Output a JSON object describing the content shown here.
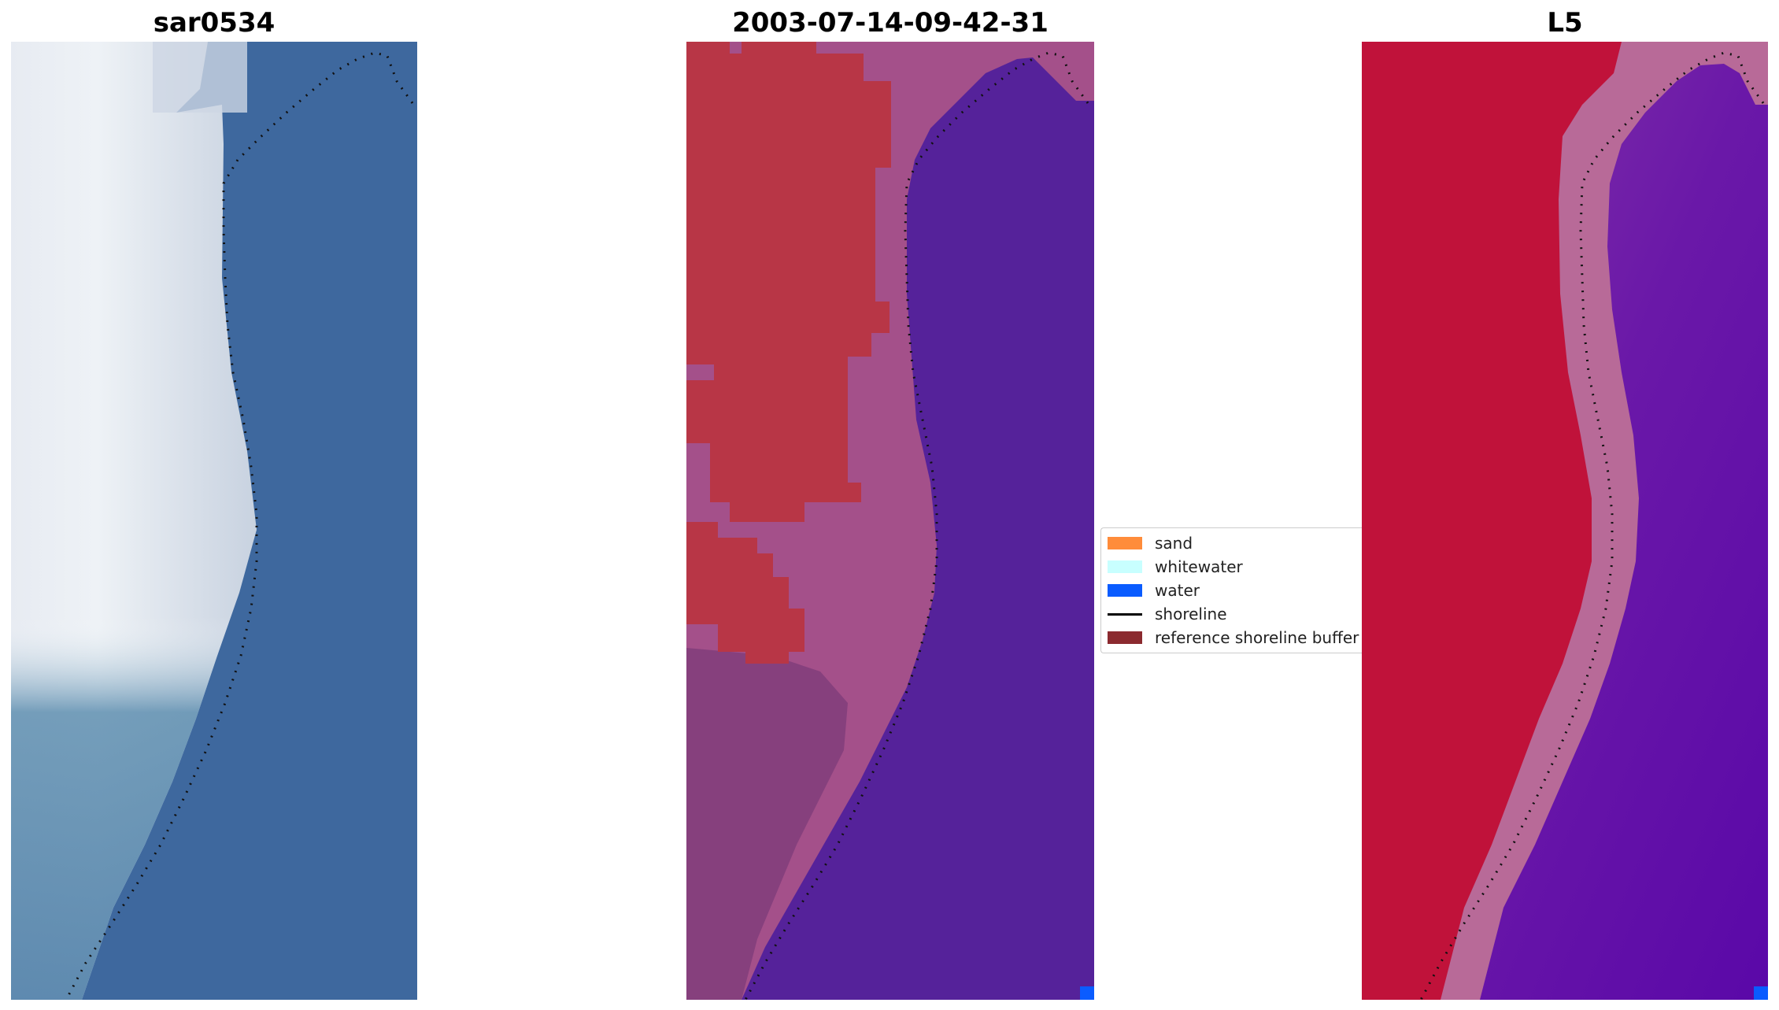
{
  "panels": [
    {
      "title": "sar0534"
    },
    {
      "title": "2003-07-14-09-42-31"
    },
    {
      "title": "L5"
    }
  ],
  "legend": {
    "items": [
      {
        "label": "sand",
        "color": "#ff8c3a",
        "kind": "patch"
      },
      {
        "label": "whitewater",
        "color": "#c8ffff",
        "kind": "patch"
      },
      {
        "label": "water",
        "color": "#0a5cff",
        "kind": "patch"
      },
      {
        "label": "shoreline",
        "color": "#000000",
        "kind": "line"
      },
      {
        "label": "reference shoreline buffer",
        "color": "#8b2a2f",
        "kind": "patch"
      }
    ]
  },
  "colors": {
    "rgb_land": "#e8ecf2",
    "rgb_water": "#3f6aa0",
    "class_sand_region": "#b83646",
    "class_buffer": "#a4508a",
    "class_water": "#55229a",
    "index_land": "#c0123a",
    "index_water": "#6a14a6",
    "index_transition": "#b86a98"
  }
}
